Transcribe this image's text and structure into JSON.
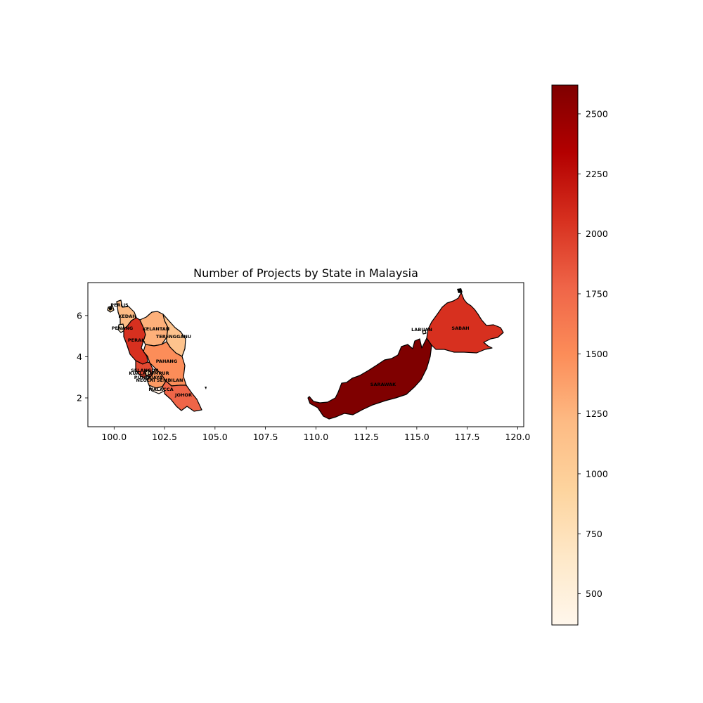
{
  "chart_data": {
    "type": "choropleth",
    "title": "Number of Projects by State in Malaysia",
    "xlabel": "",
    "ylabel": "",
    "xlim": [
      98.7,
      120.3
    ],
    "ylim": [
      0.6,
      7.6
    ],
    "x_ticks": [
      100.0,
      102.5,
      105.0,
      107.5,
      110.0,
      112.5,
      115.0,
      117.5,
      120.0
    ],
    "x_tick_labels": [
      "100.0",
      "102.5",
      "105.0",
      "107.5",
      "110.0",
      "112.5",
      "115.0",
      "117.5",
      "120.0"
    ],
    "y_ticks": [
      2,
      4,
      6
    ],
    "y_tick_labels": [
      "2",
      "4",
      "6"
    ],
    "colormap": "OrRd",
    "colorbar": {
      "min": 370,
      "max": 2620,
      "ticks": [
        500,
        750,
        1000,
        1250,
        1500,
        1750,
        2000,
        2250,
        2500
      ],
      "tick_labels": [
        "500",
        "750",
        "1000",
        "1250",
        "1500",
        "1750",
        "2000",
        "2250",
        "2500"
      ]
    },
    "states": [
      {
        "name": "PERLIS",
        "value": 900,
        "color": "#fdd49e"
      },
      {
        "name": "KEDAH",
        "value": 1200,
        "color": "#fdbb84"
      },
      {
        "name": "PENANG",
        "value": 700,
        "color": "#fee8c8"
      },
      {
        "name": "PERAK",
        "value": 2050,
        "color": "#d7301f"
      },
      {
        "name": "KELANTAN",
        "value": 1250,
        "color": "#fdb07a"
      },
      {
        "name": "TERENGGANU",
        "value": 1100,
        "color": "#fdc38d"
      },
      {
        "name": "PAHANG",
        "value": 1500,
        "color": "#fc8d59"
      },
      {
        "name": "SELANGOR",
        "value": 1950,
        "color": "#e34a33"
      },
      {
        "name": "KUALA LUMPUR",
        "value": 800,
        "color": "#fee0b6"
      },
      {
        "name": "PUTRAJAYA",
        "value": 400,
        "color": "#fff7ec"
      },
      {
        "name": "NEGERI SEMBILAN",
        "value": 1400,
        "color": "#fc9a63"
      },
      {
        "name": "MALACCA",
        "value": 600,
        "color": "#feedde"
      },
      {
        "name": "JOHOR",
        "value": 1800,
        "color": "#ef6548"
      },
      {
        "name": "LABUAN",
        "value": 380,
        "color": "#fff7ec"
      },
      {
        "name": "SABAH",
        "value": 2100,
        "color": "#d7301f"
      },
      {
        "name": "SARAWAK",
        "value": 2620,
        "color": "#7f0000"
      }
    ]
  }
}
